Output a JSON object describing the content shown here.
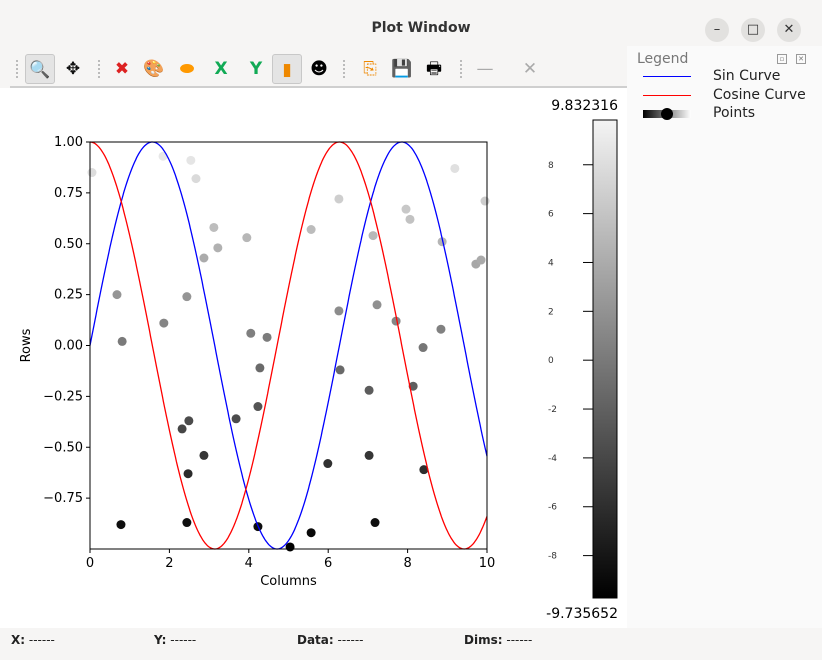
{
  "window": {
    "title": "Plot Window",
    "controls": [
      "minimize",
      "maximize",
      "close"
    ]
  },
  "toolbar": {
    "items": [
      {
        "name": "zoom-icon",
        "glyph": "🔍",
        "active": true
      },
      {
        "name": "pan-icon",
        "glyph": "✥"
      },
      {
        "name": "reset-zoom-icon",
        "glyph": "✖"
      },
      {
        "name": "colormap-palette-icon",
        "glyph": "🎨"
      },
      {
        "name": "curve-style-icon",
        "glyph": "⬬"
      },
      {
        "name": "x-axis-icon",
        "glyph": "X"
      },
      {
        "name": "y-axis-icon",
        "glyph": "Y"
      },
      {
        "name": "colorbar-icon",
        "glyph": "▮",
        "active": true
      },
      {
        "name": "mask-icon",
        "glyph": "☻"
      },
      {
        "name": "copy-icon",
        "glyph": "⎘"
      },
      {
        "name": "save-icon",
        "glyph": "💾"
      },
      {
        "name": "print-icon",
        "glyph": "🖶"
      },
      {
        "name": "line-style-icon",
        "glyph": "—"
      },
      {
        "name": "marker-style-icon",
        "glyph": "✕"
      }
    ]
  },
  "legend": {
    "title": "Legend",
    "items": [
      {
        "label": "Sin Curve",
        "color": "#0000ff"
      },
      {
        "label": "Cosine Curve",
        "color": "#ff0000"
      },
      {
        "label": "Points",
        "color": "#000000"
      }
    ]
  },
  "chart_data": {
    "type": "scatter",
    "xlabel": "Columns",
    "ylabel": "Rows",
    "xlim": [
      0,
      10
    ],
    "ylim": [
      -1.0,
      1.0
    ],
    "xticks": [
      "0",
      "2",
      "4",
      "6",
      "8",
      "10"
    ],
    "yticks": [
      "1.00",
      "0.75",
      "0.50",
      "0.25",
      "0.00",
      "−0.25",
      "−0.50",
      "−0.75"
    ],
    "grid": false,
    "series": [
      {
        "name": "Sin Curve",
        "type": "line",
        "function": "sin(x)",
        "color": "#0000ff"
      },
      {
        "name": "Cosine Curve",
        "type": "line",
        "function": "cos(x)",
        "color": "#ff0000"
      },
      {
        "name": "Points",
        "type": "scatter",
        "colormap": "gray",
        "points": [
          [
            0.05,
            0.85,
            8.3
          ],
          [
            0.68,
            0.25,
            2.4
          ],
          [
            0.81,
            0.02,
            0.2
          ],
          [
            0.78,
            -0.88,
            -8.6
          ],
          [
            1.86,
            0.11,
            1.1
          ],
          [
            1.84,
            0.93,
            9.1
          ],
          [
            2.54,
            0.91,
            8.9
          ],
          [
            2.67,
            0.82,
            8.0
          ],
          [
            2.87,
            0.43,
            4.2
          ],
          [
            3.12,
            0.58,
            5.7
          ],
          [
            3.22,
            0.48,
            4.7
          ],
          [
            2.44,
            0.24,
            2.4
          ],
          [
            2.32,
            -0.41,
            -4.0
          ],
          [
            2.49,
            -0.37,
            -3.6
          ],
          [
            2.47,
            -0.63,
            -6.2
          ],
          [
            2.87,
            -0.54,
            -5.3
          ],
          [
            2.44,
            -0.87,
            -8.5
          ],
          [
            3.68,
            -0.36,
            -3.5
          ],
          [
            3.95,
            0.53,
            5.2
          ],
          [
            4.05,
            0.06,
            0.6
          ],
          [
            4.28,
            -0.11,
            -1.1
          ],
          [
            4.23,
            -0.3,
            -2.9
          ],
          [
            4.46,
            0.04,
            0.4
          ],
          [
            4.23,
            -0.89,
            -8.7
          ],
          [
            5.04,
            -0.99,
            -9.7
          ],
          [
            5.57,
            0.57,
            5.6
          ],
          [
            5.57,
            -0.92,
            -9.0
          ],
          [
            5.99,
            -0.58,
            -5.7
          ],
          [
            6.27,
            0.72,
            7.1
          ],
          [
            6.27,
            0.17,
            1.7
          ],
          [
            6.3,
            -0.12,
            -1.2
          ],
          [
            7.03,
            -0.22,
            -2.2
          ],
          [
            7.03,
            -0.54,
            -5.3
          ],
          [
            7.13,
            0.54,
            5.3
          ],
          [
            7.23,
            0.2,
            2.0
          ],
          [
            7.18,
            -0.87,
            -8.5
          ],
          [
            7.71,
            0.12,
            1.2
          ],
          [
            7.96,
            0.67,
            6.6
          ],
          [
            8.06,
            0.62,
            6.1
          ],
          [
            8.14,
            -0.2,
            -2.0
          ],
          [
            8.39,
            -0.01,
            -0.1
          ],
          [
            8.41,
            -0.61,
            -6.0
          ],
          [
            8.84,
            0.08,
            0.8
          ],
          [
            8.87,
            0.51,
            5.0
          ],
          [
            9.19,
            0.87,
            8.5
          ],
          [
            9.72,
            0.4,
            3.9
          ],
          [
            9.85,
            0.42,
            4.1
          ],
          [
            9.95,
            0.71,
            7.0
          ]
        ]
      }
    ],
    "colorbar": {
      "max_label": "9.832316",
      "min_label": "-9.735652",
      "max": 9.832316,
      "min": -9.735652,
      "ticks": [
        "8",
        "6",
        "4",
        "2",
        "0",
        "-2",
        "-4",
        "-6",
        "-8"
      ]
    }
  },
  "status": {
    "x_label": "X:",
    "x_value": "------",
    "y_label": "Y:",
    "y_value": "------",
    "data_label": "Data:",
    "data_value": "------",
    "dims_label": "Dims:",
    "dims_value": "------"
  }
}
